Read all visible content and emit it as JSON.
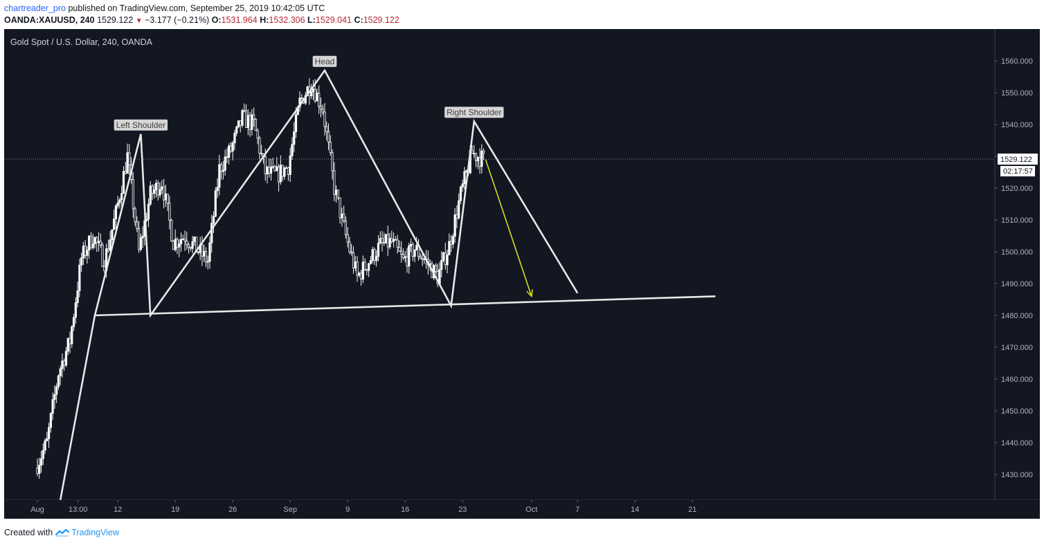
{
  "header": {
    "user": "chartreader_pro",
    "published_text": "published on TradingView.com, September 25, 2019 10:42:05 UTC",
    "symbol": "OANDA:XAUUSD, 240",
    "last": "1529.122",
    "change": "−3.177 (−0.21%)",
    "o_label": "O:",
    "o_value": "1531.964",
    "h_label": "H:",
    "h_value": "1532.306",
    "l_label": "L:",
    "l_value": "1529.041",
    "c_label": "C:",
    "c_value": "1529.122"
  },
  "colors": {
    "background": "#131722",
    "candle_up": "#ffffff",
    "candle_down": "#ffffff",
    "pattern_lines": "#e8e8e8",
    "arrow": "#dcdc1e",
    "axis_text": "#b2b5be"
  },
  "chart_data": {
    "type": "candlestick",
    "title": "Gold Spot / U.S. Dollar, 240, OANDA",
    "ylim": [
      1422,
      1568
    ],
    "y_ticks": [
      1430,
      1440,
      1450,
      1460,
      1470,
      1480,
      1490,
      1500,
      1510,
      1520,
      1530,
      1540,
      1550,
      1560
    ],
    "y_tick_labels": [
      "1430.000",
      "1440.000",
      "1450.000",
      "1460.000",
      "1470.000",
      "1480.000",
      "1490.000",
      "1500.000",
      "1510.000",
      "1520.000",
      "1530.000",
      "1540.000",
      "1550.000",
      "1560.000"
    ],
    "x_tick_labels": [
      "Aug",
      "13:00",
      "12",
      "19",
      "26",
      "Sep",
      "9",
      "16",
      "23",
      "Oct",
      "7",
      "14",
      "21"
    ],
    "x_tick_dates": [
      "2019-08-01",
      "2019-08-06 13:00",
      "2019-08-12",
      "2019-08-19",
      "2019-08-26",
      "2019-09-02",
      "2019-09-09",
      "2019-09-16",
      "2019-09-23",
      "2019-10-01",
      "2019-10-07",
      "2019-10-14",
      "2019-10-21"
    ],
    "last_price": 1529.122,
    "last_price_label": "1529.122",
    "countdown_label": "02:17:57",
    "price_path": [
      {
        "date": "2019-08-01",
        "price": 1432
      },
      {
        "date": "2019-08-02",
        "price": 1440
      },
      {
        "date": "2019-08-05",
        "price": 1462
      },
      {
        "date": "2019-08-06",
        "price": 1472
      },
      {
        "date": "2019-08-07",
        "price": 1498
      },
      {
        "date": "2019-08-08",
        "price": 1505
      },
      {
        "date": "2019-08-09",
        "price": 1497
      },
      {
        "date": "2019-08-12",
        "price": 1512
      },
      {
        "date": "2019-08-13",
        "price": 1530
      },
      {
        "date": "2019-08-14",
        "price": 1500
      },
      {
        "date": "2019-08-15",
        "price": 1518
      },
      {
        "date": "2019-08-16",
        "price": 1522
      },
      {
        "date": "2019-08-19",
        "price": 1503
      },
      {
        "date": "2019-08-20",
        "price": 1505
      },
      {
        "date": "2019-08-21",
        "price": 1501
      },
      {
        "date": "2019-08-22",
        "price": 1497
      },
      {
        "date": "2019-08-23",
        "price": 1526
      },
      {
        "date": "2019-08-26",
        "price": 1532
      },
      {
        "date": "2019-08-27",
        "price": 1542
      },
      {
        "date": "2019-08-28",
        "price": 1540
      },
      {
        "date": "2019-08-29",
        "price": 1525
      },
      {
        "date": "2019-08-30",
        "price": 1524
      },
      {
        "date": "2019-09-02",
        "price": 1527
      },
      {
        "date": "2019-09-03",
        "price": 1547
      },
      {
        "date": "2019-09-04",
        "price": 1553
      },
      {
        "date": "2019-09-05",
        "price": 1545
      },
      {
        "date": "2019-09-06",
        "price": 1520
      },
      {
        "date": "2019-09-09",
        "price": 1505
      },
      {
        "date": "2019-09-10",
        "price": 1492
      },
      {
        "date": "2019-09-11",
        "price": 1497
      },
      {
        "date": "2019-09-12",
        "price": 1502
      },
      {
        "date": "2019-09-13",
        "price": 1503
      },
      {
        "date": "2019-09-16",
        "price": 1497
      },
      {
        "date": "2019-09-17",
        "price": 1501
      },
      {
        "date": "2019-09-18",
        "price": 1497
      },
      {
        "date": "2019-09-19",
        "price": 1492
      },
      {
        "date": "2019-09-20",
        "price": 1502
      },
      {
        "date": "2019-09-23",
        "price": 1518
      },
      {
        "date": "2019-09-24",
        "price": 1531
      },
      {
        "date": "2019-09-25",
        "price": 1529
      }
    ],
    "pattern": {
      "labels": [
        {
          "text": "Left Shoulder",
          "date": "2019-08-14",
          "price": 1537
        },
        {
          "text": "Head",
          "date": "2019-09-05",
          "price": 1557
        },
        {
          "text": "Right Shoulder",
          "date": "2019-09-24",
          "price": 1541
        }
      ],
      "zigzag": [
        {
          "date": "2019-08-04",
          "price": 1422
        },
        {
          "date": "2019-08-08",
          "price": 1480
        },
        {
          "date": "2019-08-14",
          "price": 1537
        },
        {
          "date": "2019-08-14 20:00",
          "price": 1480
        },
        {
          "date": "2019-09-05",
          "price": 1557
        },
        {
          "date": "2019-09-20",
          "price": 1483
        },
        {
          "date": "2019-09-24",
          "price": 1541
        },
        {
          "date": "2019-10-06",
          "price": 1487
        }
      ],
      "neckline": [
        {
          "date": "2019-08-08",
          "price": 1480
        },
        {
          "date": "2019-10-23",
          "price": 1486
        }
      ],
      "projection_arrow": [
        {
          "date": "2019-09-25",
          "price": 1529
        },
        {
          "date": "2019-10-01",
          "price": 1486
        }
      ]
    }
  },
  "footer": {
    "created_with": "Created with",
    "brand": "TradingView"
  }
}
